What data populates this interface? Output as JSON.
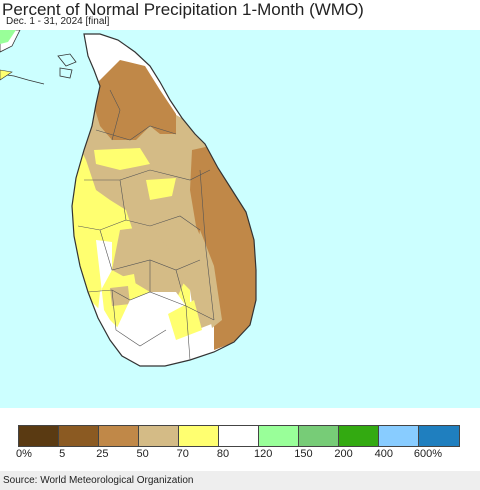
{
  "title": "Percent of Normal Precipitation 1-Month (WMO)",
  "subtitle": "Dec. 1 - 31, 2024 [final]",
  "source": "Source: World Meteorological Organization",
  "colors": {
    "ocean": "#ccffff",
    "land_outline": "#333333",
    "district_line": "#555555"
  },
  "legend": {
    "colors": [
      "#5a3a12",
      "#8b5a22",
      "#c08848",
      "#d4bb86",
      "#ffff70",
      "#ffffff",
      "#99ff99",
      "#77cc77",
      "#33aa11",
      "#88ccff",
      "#1f7fbf"
    ],
    "labels": [
      "0%",
      "5",
      "25",
      "50",
      "70",
      "80",
      "120",
      "150",
      "200",
      "400",
      "600%"
    ]
  },
  "map_regions": [
    {
      "name": "northern-dry-region",
      "category": "25-50",
      "color": "#c08848"
    },
    {
      "name": "eastern-coast-region",
      "category": "25-50",
      "color": "#c08848"
    },
    {
      "name": "north-central-region",
      "category": "50-70",
      "color": "#d4bb86"
    },
    {
      "name": "central-east-region",
      "category": "50-70",
      "color": "#d4bb86"
    },
    {
      "name": "western-region",
      "category": "70-80",
      "color": "#ffff70"
    },
    {
      "name": "southwestern-region",
      "category": "80-120",
      "color": "#ffffff"
    }
  ]
}
